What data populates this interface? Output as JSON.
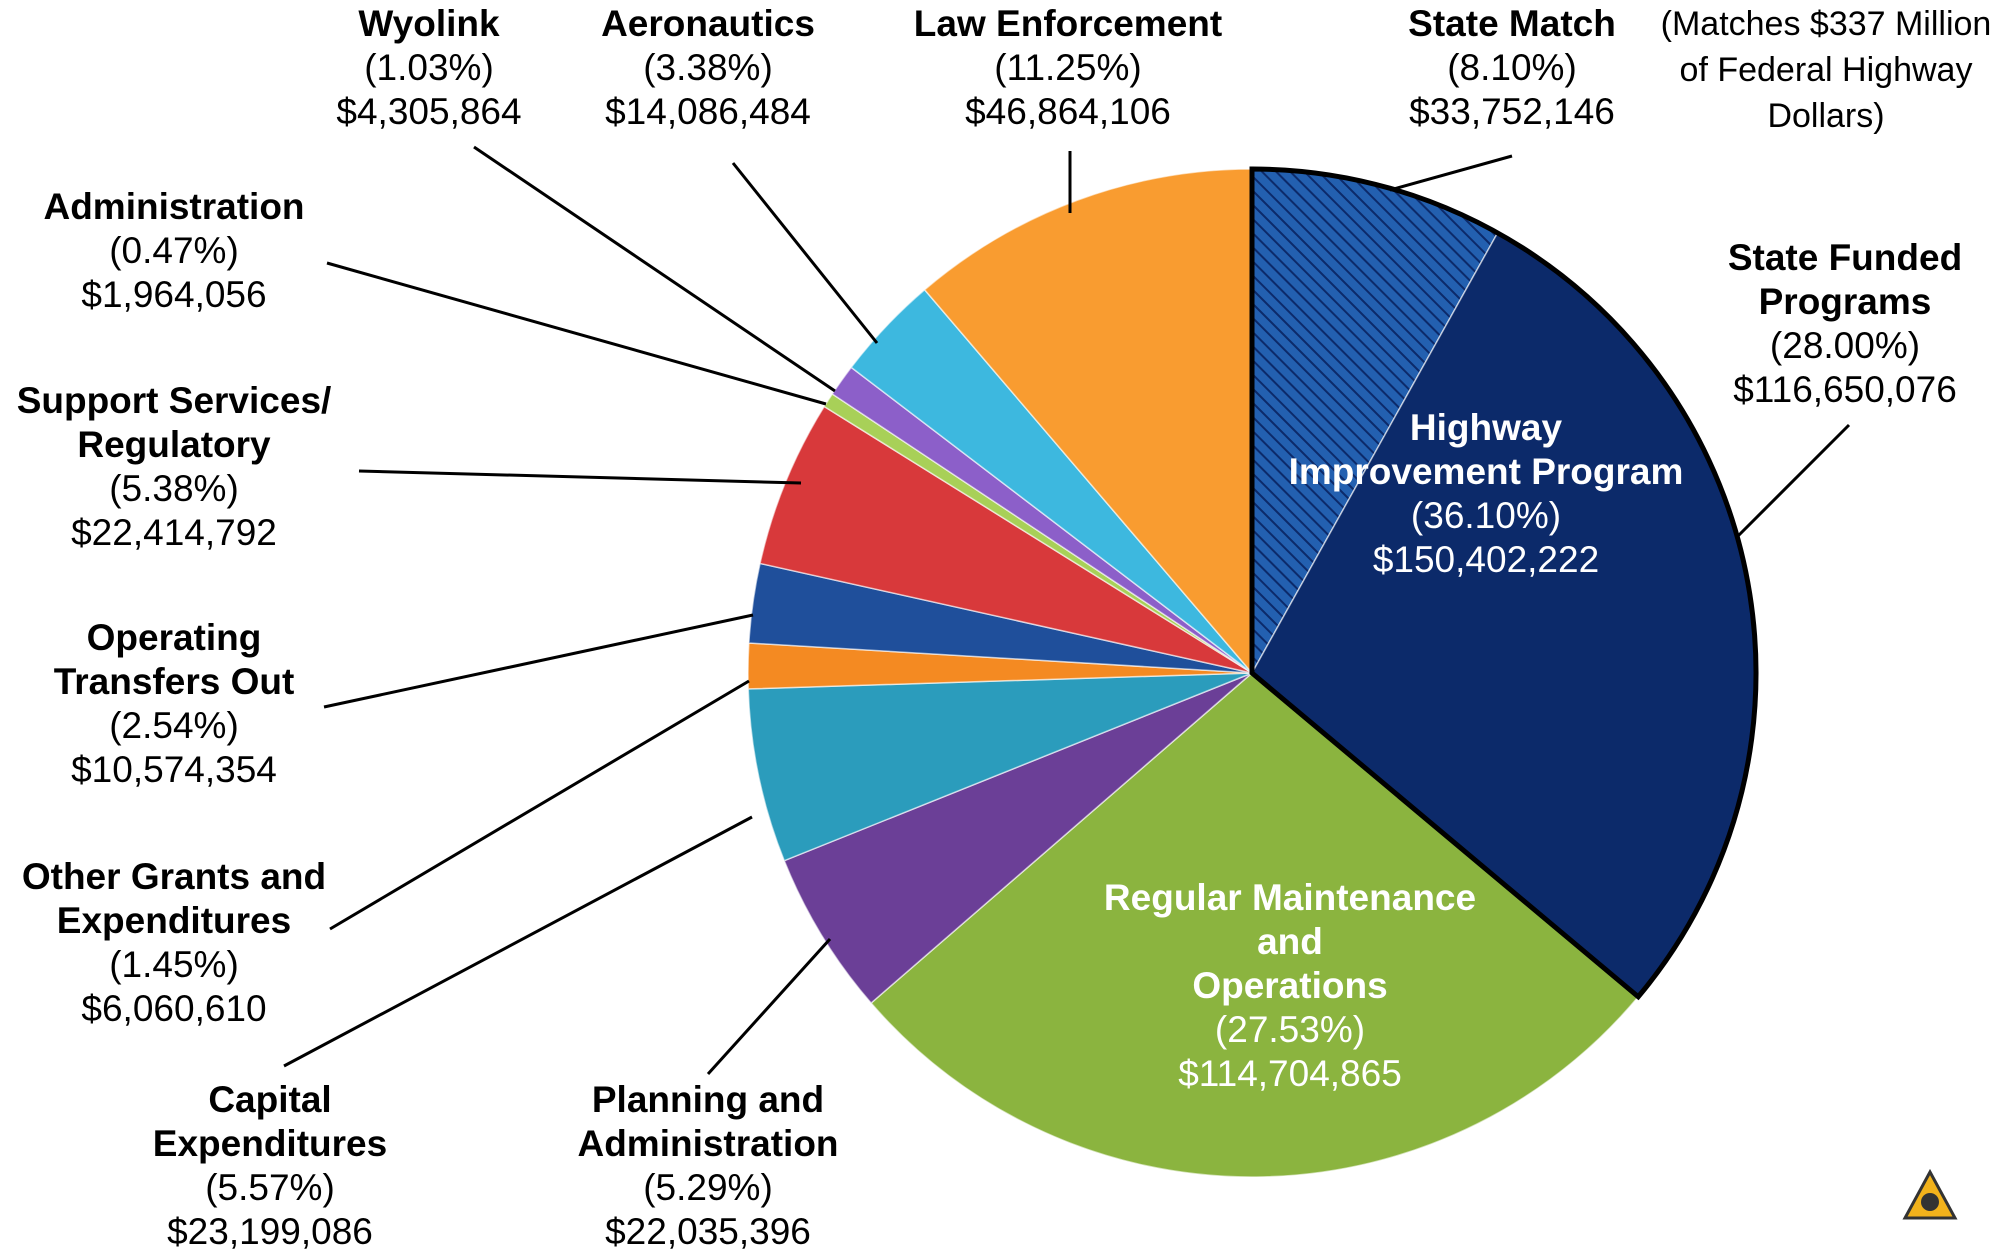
{
  "chart_data": {
    "type": "pie",
    "categories": [
      [
        "State Match"
      ],
      [
        "State Funded",
        "Programs"
      ],
      [
        "Regular Maintenance",
        "and",
        "Operations"
      ],
      [
        "Planning and",
        "Administration"
      ],
      [
        "Capital",
        "Expenditures"
      ],
      [
        "Other Grants and",
        "Expenditures"
      ],
      [
        "Operating",
        "Transfers Out"
      ],
      [
        "Support Services/",
        "Regulatory"
      ],
      [
        "Administration"
      ],
      [
        "Wyolink"
      ],
      [
        "Aeronautics"
      ],
      [
        "Law Enforcement"
      ]
    ],
    "values": [
      8.1,
      28.0,
      27.53,
      5.29,
      5.57,
      1.45,
      2.54,
      5.38,
      0.47,
      1.03,
      3.38,
      11.25
    ],
    "value_labels": [
      "(8.10%)",
      "(28.00%)",
      "(27.53%)",
      "(5.29%)",
      "(5.57%)",
      "(1.45%)",
      "(2.54%)",
      "(5.38%)",
      "(0.47%)",
      "(1.03%)",
      "(3.38%)",
      "(11.25%)"
    ],
    "amounts": [
      33752146,
      116650076,
      114704865,
      22035396,
      23199086,
      6060610,
      10574354,
      22414792,
      1964056,
      4305864,
      14086484,
      46864106
    ],
    "amount_labels": [
      "$33,752,146",
      "$116,650,076",
      "$114,704,865",
      "$22,035,396",
      "$23,199,086",
      "$6,060,610",
      "$10,574,354",
      "$22,414,792",
      "$1,964,056",
      "$4,305,864",
      "$14,086,484",
      "$46,864,106"
    ],
    "colors": [
      "#2360b0",
      "#0c2a6a",
      "#8bb43f",
      "#6b3f97",
      "#2b9cbc",
      "#f48a22",
      "#1f4f9b",
      "#d8393b",
      "#a8d058",
      "#8c5fc9",
      "#3db8df",
      "#f99c30"
    ],
    "hatched": [
      true,
      false,
      false,
      false,
      false,
      false,
      false,
      false,
      false,
      false,
      false,
      false
    ],
    "group": {
      "name": [
        "Highway",
        "Improvement Program"
      ],
      "value": 36.1,
      "value_label": "(36.10%)",
      "amount": 150402222,
      "amount_label": "$150,402,222"
    },
    "annotation": [
      "(Matches $337 Million",
      "of Federal Highway",
      "Dollars)"
    ]
  }
}
